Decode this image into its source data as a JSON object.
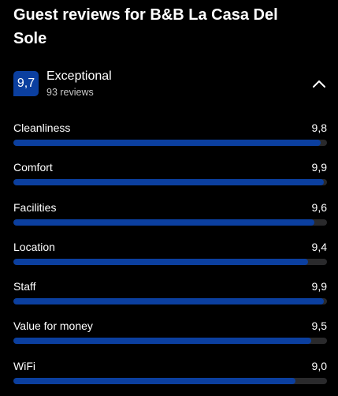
{
  "page": {
    "title": "Guest reviews for B&B La Casa Del Sole"
  },
  "summary": {
    "score": "9,7",
    "rating_word": "Exceptional",
    "review_count": "93 reviews",
    "collapse_icon": "chevron-up-icon"
  },
  "categories": [
    {
      "label": "Cleanliness",
      "score": "9,8",
      "fraction": 0.98
    },
    {
      "label": "Comfort",
      "score": "9,9",
      "fraction": 0.99
    },
    {
      "label": "Facilities",
      "score": "9,6",
      "fraction": 0.96
    },
    {
      "label": "Location",
      "score": "9,4",
      "fraction": 0.94
    },
    {
      "label": "Staff",
      "score": "9,9",
      "fraction": 0.99
    },
    {
      "label": "Value for money",
      "score": "9,5",
      "fraction": 0.95
    },
    {
      "label": "WiFi",
      "score": "9,0",
      "fraction": 0.9
    }
  ],
  "colors": {
    "background": "#000000",
    "accent": "#0b3f9f",
    "track": "#2a2a2c",
    "text": "#ffffff",
    "muted_text": "#c9c9c9"
  }
}
